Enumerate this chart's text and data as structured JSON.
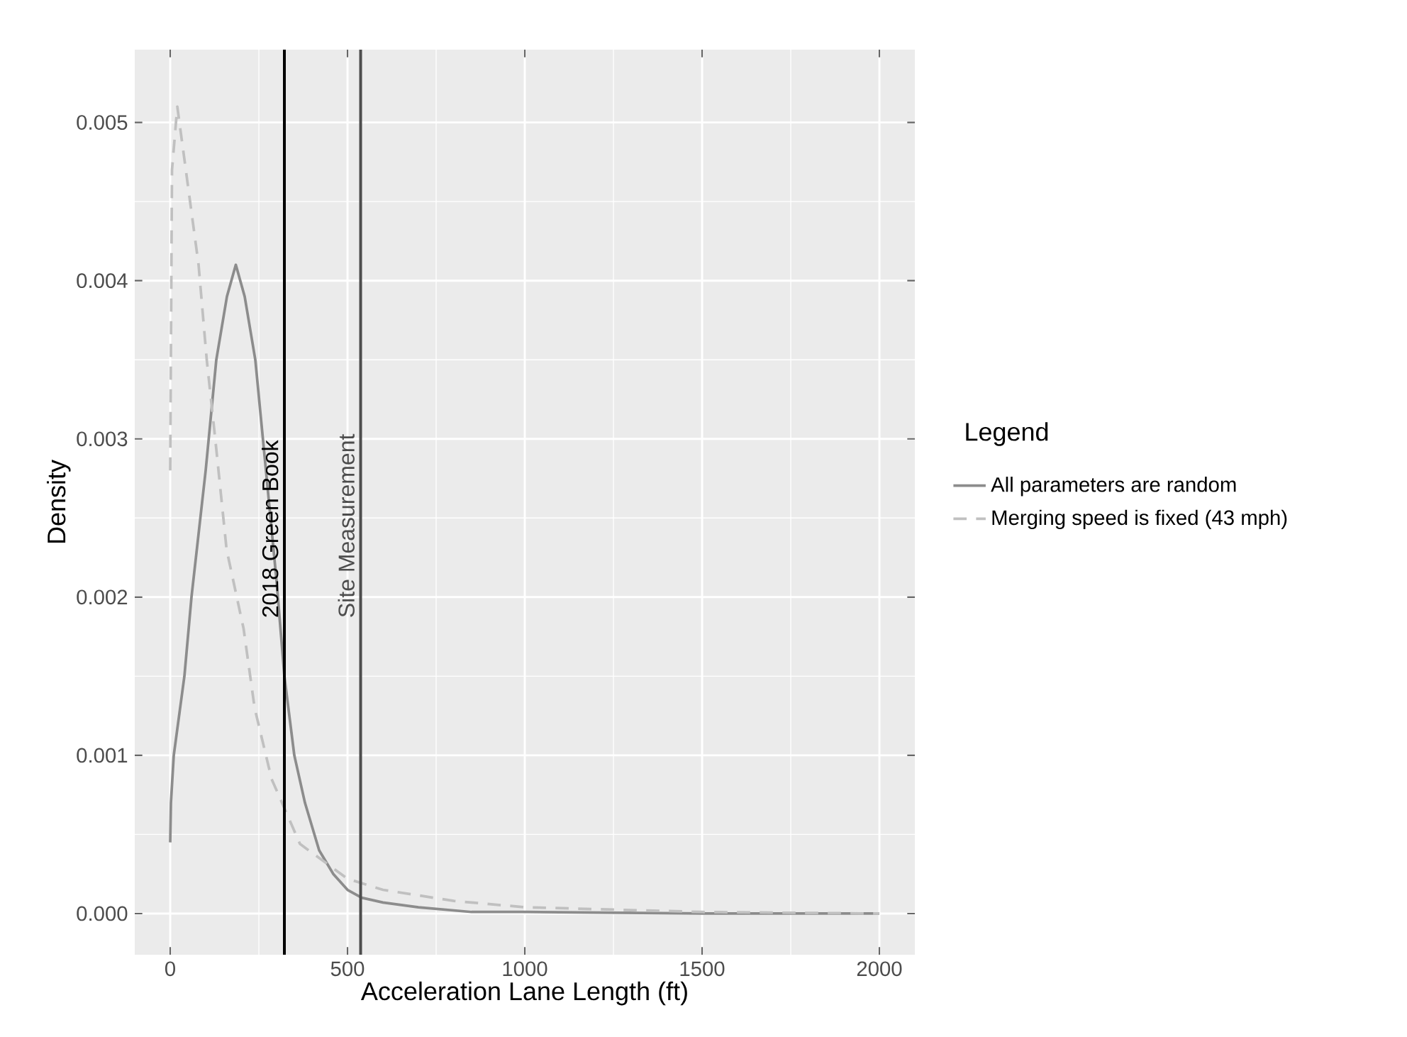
{
  "chart_data": {
    "type": "line",
    "xlabel": "Acceleration Lane Length (ft)",
    "ylabel": "Density",
    "legend_title": "Legend",
    "xlim": [
      -100,
      2100
    ],
    "xticks": [
      0,
      500,
      1000,
      1500,
      2000
    ],
    "ylim": [
      -0.00026,
      0.00546
    ],
    "yticks": [
      {
        "value": 0,
        "label": "0.000"
      },
      {
        "value": 0.001,
        "label": "0.001"
      },
      {
        "value": 0.002,
        "label": "0.002"
      },
      {
        "value": 0.003,
        "label": "0.003"
      },
      {
        "value": 0.004,
        "label": "0.004"
      },
      {
        "value": 0.005,
        "label": "0.005"
      }
    ],
    "grid": true,
    "legend": "right",
    "series": [
      {
        "name": "All parameters are random",
        "color": "#8c8c8c",
        "line_style": "solid",
        "x": [
          0,
          2,
          10,
          40,
          60,
          100,
          130,
          160,
          185,
          210,
          240,
          270,
          300,
          322,
          350,
          380,
          420,
          460,
          500,
          540,
          600,
          700,
          850,
          1000,
          1500,
          2000
        ],
        "values": [
          0.00045,
          0.0007,
          0.001,
          0.0015,
          0.002,
          0.0028,
          0.0035,
          0.0039,
          0.0041,
          0.0039,
          0.0035,
          0.0028,
          0.0021,
          0.0015,
          0.001,
          0.0007,
          0.0004,
          0.00025,
          0.00015,
          0.0001,
          7e-05,
          4e-05,
          1e-05,
          1e-05,
          0,
          0
        ]
      },
      {
        "name": "Merging speed is fixed (43 mph)",
        "color": "#c0c0c0",
        "line_style": "dashed",
        "x": [
          0,
          5,
          20,
          56,
          80,
          103,
          127,
          159,
          207,
          238,
          286,
          366,
          500,
          600,
          800,
          1000,
          1500,
          2000
        ],
        "values": [
          0.0028,
          0.0047,
          0.0051,
          0.0045,
          0.0041,
          0.0035,
          0.003,
          0.0023,
          0.0018,
          0.0013,
          0.00085,
          0.00044,
          0.00022,
          0.00015,
          8e-05,
          4e-05,
          1e-05,
          0
        ]
      }
    ],
    "ref_lines": [
      {
        "axis": "x",
        "value": 322,
        "label": "2018 Green Book",
        "color": "#000000"
      },
      {
        "axis": "x",
        "value": 537,
        "label": "Site Measurement",
        "color": "#4d4d4d"
      }
    ]
  }
}
